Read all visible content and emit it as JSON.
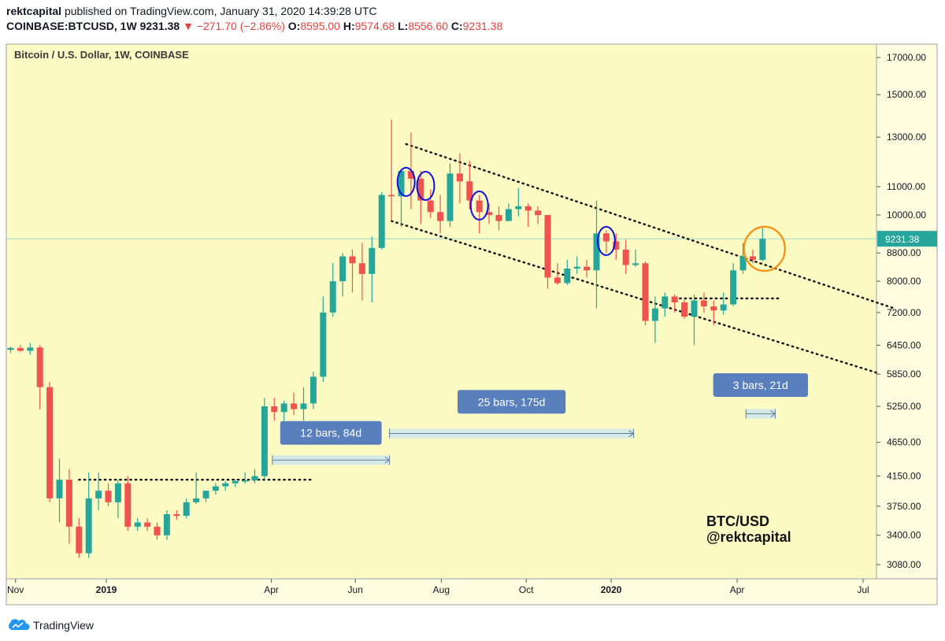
{
  "header": {
    "author": "rektcapital",
    "published_text": "published on TradingView.com, January 31, 2020 14:39:28 UTC",
    "symbol": "COINBASE:BTCUSD, 1W",
    "last": "9231.38",
    "change": "−271.70 (−2.86%)",
    "o_label": "O:",
    "o_value": "8595.00",
    "h_label": "H:",
    "h_value": "9574.68",
    "l_label": "L:",
    "l_value": "8556.60",
    "c_label": "C:",
    "c_value": "9231.38"
  },
  "footer": {
    "brand": "TradingView"
  },
  "colors": {
    "background": "#fdfbc4",
    "up": "#26a69a",
    "down": "#ef5350",
    "blue_ann": "#1010d8",
    "orange_ann": "#f7931a",
    "range_box": "#5a7fbd",
    "price_line": "#9ed9d0"
  },
  "chart_data": {
    "type": "candlestick",
    "title": "Bitcoin / U.S. Dollar, 1W, COINBASE",
    "scale": "log",
    "y_ticks": [
      17000,
      15000,
      13000,
      11000,
      10000,
      8800,
      8000,
      7200,
      6450,
      5850,
      5250,
      4650,
      4150,
      3750,
      3400,
      3080
    ],
    "y_tick_labels": [
      "17000.00",
      "15000.00",
      "13000.00",
      "11000.00",
      "10000.00",
      "8800.00",
      "8000.00",
      "7200.00",
      "6450.00",
      "5850.00",
      "5250.00",
      "4650.00",
      "4150.00",
      "3750.00",
      "3400.00",
      "3080.00"
    ],
    "x_ticks": [
      {
        "label": "Nov",
        "bar": 0.5,
        "bold": false
      },
      {
        "label": "2019",
        "bar": 9.8,
        "bold": true
      },
      {
        "label": "Apr",
        "bar": 26.7,
        "bold": false
      },
      {
        "label": "Jun",
        "bar": 35.3,
        "bold": false
      },
      {
        "label": "Aug",
        "bar": 44.1,
        "bold": false
      },
      {
        "label": "Oct",
        "bar": 52.8,
        "bold": false
      },
      {
        "label": "2020",
        "bar": 61.5,
        "bold": true
      },
      {
        "label": "Apr",
        "bar": 74.4,
        "bold": false
      },
      {
        "label": "Jul",
        "bar": 87.3,
        "bold": false
      }
    ],
    "last_price": 9231.38,
    "last_price_label": "9231.38",
    "candles": [
      [
        6350,
        6420,
        6280,
        6390
      ],
      [
        6390,
        6450,
        6300,
        6330
      ],
      [
        6330,
        6500,
        6250,
        6400
      ],
      [
        6400,
        6450,
        5200,
        5600
      ],
      [
        5600,
        5700,
        3800,
        3850
      ],
      [
        3850,
        4400,
        3550,
        4100
      ],
      [
        4100,
        4250,
        3300,
        3500
      ],
      [
        3500,
        3600,
        3150,
        3200
      ],
      [
        3200,
        4200,
        3150,
        3850
      ],
      [
        3850,
        4200,
        3700,
        3950
      ],
      [
        3950,
        4050,
        3750,
        3800
      ],
      [
        3800,
        4100,
        3600,
        4050
      ],
      [
        4050,
        4150,
        3450,
        3500
      ],
      [
        3500,
        3600,
        3450,
        3550
      ],
      [
        3550,
        3600,
        3450,
        3500
      ],
      [
        3500,
        3550,
        3350,
        3400
      ],
      [
        3400,
        3700,
        3350,
        3650
      ],
      [
        3650,
        3700,
        3580,
        3630
      ],
      [
        3630,
        3850,
        3600,
        3800
      ],
      [
        3800,
        4200,
        3780,
        3850
      ],
      [
        3850,
        3950,
        3800,
        3950
      ],
      [
        3950,
        4050,
        3900,
        4010
      ],
      [
        4010,
        4080,
        3950,
        4050
      ],
      [
        4050,
        4100,
        4000,
        4080
      ],
      [
        4080,
        4200,
        4050,
        4090
      ],
      [
        4090,
        4250,
        4050,
        4150
      ],
      [
        4150,
        5400,
        4100,
        5250
      ],
      [
        5250,
        5400,
        5000,
        5150
      ],
      [
        5150,
        5350,
        5000,
        5300
      ],
      [
        5300,
        5500,
        5100,
        5200
      ],
      [
        5200,
        5600,
        5000,
        5300
      ],
      [
        5300,
        5900,
        5200,
        5800
      ],
      [
        5800,
        7600,
        5700,
        7200
      ],
      [
        7200,
        8500,
        7100,
        8000
      ],
      [
        8000,
        8800,
        7600,
        8700
      ],
      [
        8700,
        8900,
        7700,
        8500
      ],
      [
        8500,
        9100,
        7500,
        8200
      ],
      [
        8200,
        9300,
        7450,
        8950
      ],
      [
        8950,
        10800,
        8900,
        10700
      ],
      [
        10700,
        13800,
        9800,
        10650
      ],
      [
        10650,
        11500,
        9600,
        11600
      ],
      [
        11600,
        13200,
        10200,
        11300
      ],
      [
        11300,
        11600,
        9700,
        10500
      ],
      [
        10500,
        10900,
        9900,
        10100
      ],
      [
        10100,
        10700,
        9400,
        9800
      ],
      [
        9800,
        11900,
        9600,
        11500
      ],
      [
        11500,
        12300,
        10400,
        11200
      ],
      [
        11200,
        12000,
        10200,
        10500
      ],
      [
        10500,
        10700,
        9400,
        10100
      ],
      [
        10100,
        10400,
        9700,
        10000
      ],
      [
        10000,
        10300,
        9500,
        9800
      ],
      [
        9800,
        10400,
        9800,
        10200
      ],
      [
        10200,
        10950,
        9950,
        10300
      ],
      [
        10300,
        10400,
        9600,
        10150
      ],
      [
        10150,
        10300,
        9700,
        10000
      ],
      [
        10000,
        10000,
        7800,
        8100
      ],
      [
        8100,
        8500,
        7900,
        7950
      ],
      [
        7950,
        8600,
        7900,
        8350
      ],
      [
        8350,
        8700,
        8200,
        8400
      ],
      [
        8400,
        8600,
        8100,
        8300
      ],
      [
        8300,
        10500,
        7300,
        9400
      ],
      [
        9400,
        9500,
        8800,
        9150
      ],
      [
        9150,
        9400,
        8600,
        8900
      ],
      [
        8900,
        9200,
        8200,
        8450
      ],
      [
        8450,
        8900,
        8400,
        8500
      ],
      [
        8500,
        8550,
        6900,
        7000
      ],
      [
        7000,
        7600,
        6500,
        7300
      ],
      [
        7300,
        7700,
        7100,
        7600
      ],
      [
        7600,
        7650,
        7200,
        7450
      ],
      [
        7450,
        7550,
        7050,
        7100
      ],
      [
        7100,
        7650,
        6450,
        7500
      ],
      [
        7500,
        7700,
        7200,
        7350
      ],
      [
        7350,
        7500,
        6900,
        7250
      ],
      [
        7250,
        7700,
        7150,
        7400
      ],
      [
        7400,
        8500,
        7350,
        8300
      ],
      [
        8300,
        9100,
        8200,
        8700
      ],
      [
        8700,
        8900,
        8500,
        8600
      ],
      [
        8595,
        9575,
        8557,
        9231
      ]
    ],
    "trendlines": [
      {
        "name": "upper-channel",
        "from": [
          40.5,
          12700
        ],
        "to": [
          90.5,
          7300
        ]
      },
      {
        "name": "lower-channel",
        "from": [
          39,
          9800
        ],
        "to": [
          89,
          5860
        ]
      },
      {
        "name": "support-2019",
        "from": [
          7,
          4100
        ],
        "to": [
          31,
          4100
        ]
      },
      {
        "name": "support-dec",
        "from": [
          68,
          7550
        ],
        "to": [
          79,
          7550
        ]
      }
    ],
    "ranges": [
      {
        "name": "range-12-bars",
        "label": "12 bars, 84d",
        "from_bar": 26.8,
        "to_bar": 38.8,
        "arrow_price": 4380,
        "label_price": 4800
      },
      {
        "name": "range-25-bars",
        "label": "25 bars, 175d",
        "from_bar": 38.8,
        "to_bar": 63.8,
        "arrow_price": 4790,
        "label_price": 5330
      },
      {
        "name": "range-3-bars",
        "label": "3 bars, 21d",
        "from_bar": 75.3,
        "to_bar": 78.3,
        "arrow_price": 5120,
        "label_price": 5640
      }
    ],
    "annotations": {
      "blue_circles_bars": [
        40.5,
        42.5,
        48,
        61
      ],
      "orange_circle_bar": 77.2,
      "watermark_pair": "BTC/USD",
      "watermark_handle": "@rektcapital"
    }
  }
}
